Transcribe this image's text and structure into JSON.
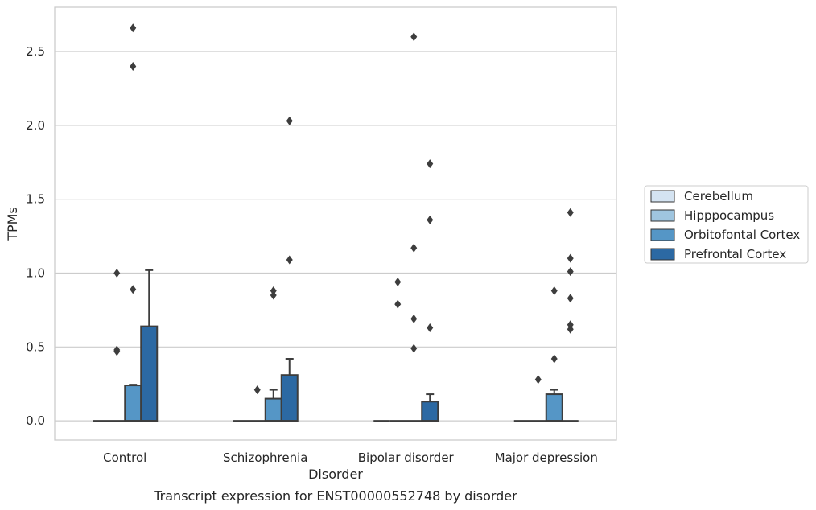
{
  "chart_data": {
    "type": "box",
    "caption": "Transcript expression for ENST00000552748 by disorder",
    "xlabel": "Disorder",
    "ylabel": "TPMs",
    "ylim": [
      -0.13,
      2.8
    ],
    "yticks": [
      0.0,
      0.5,
      1.0,
      1.5,
      2.0,
      2.5
    ],
    "ytick_labels": [
      "0.0",
      "0.5",
      "1.0",
      "1.5",
      "2.0",
      "2.5"
    ],
    "grid": "horizontal",
    "legend_position": "right",
    "categories": [
      "Control",
      "Schizophrenia",
      "Bipolar disorder",
      "Major depression"
    ],
    "series": [
      {
        "name": "Cerebellum",
        "color": "#d4e3f1",
        "boxes": [
          {
            "q1": 0,
            "median": 0,
            "q3": 0,
            "whisker_high": 0,
            "outliers": []
          },
          {
            "q1": 0,
            "median": 0,
            "q3": 0,
            "whisker_high": 0,
            "outliers": []
          },
          {
            "q1": 0,
            "median": 0,
            "q3": 0,
            "whisker_high": 0,
            "outliers": []
          },
          {
            "q1": 0,
            "median": 0,
            "q3": 0,
            "whisker_high": 0,
            "outliers": []
          }
        ]
      },
      {
        "name": "Hipppocampus",
        "color": "#9fc5df",
        "boxes": [
          {
            "q1": 0,
            "median": 0,
            "q3": 0,
            "whisker_high": 0,
            "outliers": [
              0.47,
              0.48,
              1.0
            ]
          },
          {
            "q1": 0,
            "median": 0,
            "q3": 0,
            "whisker_high": 0,
            "outliers": [
              0.21
            ]
          },
          {
            "q1": 0,
            "median": 0,
            "q3": 0,
            "whisker_high": 0,
            "outliers": [
              0.79,
              0.94
            ]
          },
          {
            "q1": 0,
            "median": 0,
            "q3": 0,
            "whisker_high": 0,
            "outliers": [
              0.28
            ]
          }
        ]
      },
      {
        "name": "Orbitofontal Cortex",
        "color": "#5596c6",
        "boxes": [
          {
            "q1": 0,
            "median": 0,
            "q3": 0.24,
            "whisker_high": 0.245,
            "outliers": [
              0.89,
              2.4,
              2.66
            ]
          },
          {
            "q1": 0,
            "median": 0,
            "q3": 0.15,
            "whisker_high": 0.21,
            "outliers": [
              0.85,
              0.88
            ]
          },
          {
            "q1": 0,
            "median": 0,
            "q3": 0,
            "whisker_high": 0,
            "outliers": [
              0.49,
              0.69,
              1.17,
              2.6
            ]
          },
          {
            "q1": 0,
            "median": 0,
            "q3": 0.18,
            "whisker_high": 0.21,
            "outliers": [
              0.42,
              0.88
            ]
          }
        ]
      },
      {
        "name": "Prefrontal Cortex",
        "color": "#2c69a3",
        "boxes": [
          {
            "q1": 0,
            "median": 0,
            "q3": 0.64,
            "whisker_high": 1.02,
            "outliers": []
          },
          {
            "q1": 0,
            "median": 0,
            "q3": 0.31,
            "whisker_high": 0.42,
            "outliers": [
              1.09,
              2.03
            ]
          },
          {
            "q1": 0,
            "median": 0,
            "q3": 0.13,
            "whisker_high": 0.18,
            "outliers": [
              0.63,
              1.36,
              1.74
            ]
          },
          {
            "q1": 0,
            "median": 0,
            "q3": 0,
            "whisker_high": 0,
            "outliers": [
              0.62,
              0.65,
              0.83,
              1.01,
              1.1,
              1.41
            ]
          }
        ]
      }
    ]
  }
}
